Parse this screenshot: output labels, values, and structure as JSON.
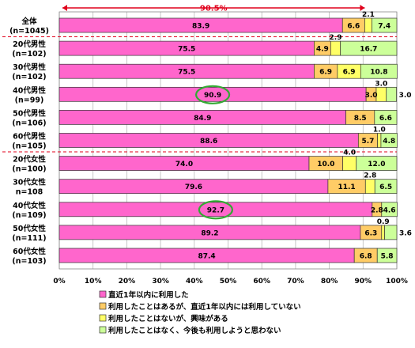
{
  "chart_data": {
    "type": "bar",
    "orientation": "horizontal",
    "stacked": true,
    "percent_axis": true,
    "categories": [
      {
        "label": "全体",
        "n": "(n=1045)"
      },
      {
        "label": "20代男性",
        "n": "(n=102)"
      },
      {
        "label": "30代男性",
        "n": "(n=102)"
      },
      {
        "label": "40代男性",
        "n": "(n=99)"
      },
      {
        "label": "50代男性",
        "n": "(n=106)"
      },
      {
        "label": "60代男性",
        "n": "(n=105)"
      },
      {
        "label": "20代女性",
        "n": "(n=100)"
      },
      {
        "label": "30代女性",
        "n": "n=108"
      },
      {
        "label": "40代女性",
        "n": "(n=109)"
      },
      {
        "label": "50代女性",
        "n": "(n=111)"
      },
      {
        "label": "60代女性",
        "n": "(n=103)"
      }
    ],
    "series": [
      {
        "name": "直近1年以内に利用した",
        "color": "#ff66cc",
        "values": [
          83.9,
          75.5,
          75.5,
          90.9,
          84.9,
          88.6,
          74.0,
          79.6,
          92.7,
          89.2,
          87.4
        ],
        "labels": [
          "83.9",
          "75.5",
          "75.5",
          "90.9",
          "84.9",
          "88.6",
          "74.0",
          "79.6",
          "92.7",
          "89.2",
          "87.4"
        ]
      },
      {
        "name": "利用したことはあるが、直近1年以内には利用していない",
        "color": "#ffcc66",
        "values": [
          6.6,
          4.9,
          6.9,
          3.0,
          8.5,
          5.7,
          10.0,
          11.1,
          2.8,
          6.3,
          6.8
        ],
        "labels": [
          "6.6",
          "4.9",
          "6.9",
          "3.0",
          "8.5",
          "5.7",
          "10.0",
          "11.1",
          "2.8",
          "6.3",
          "6.8"
        ]
      },
      {
        "name": "利用したことはないが、興味がある",
        "color": "#ffff66",
        "values": [
          2.1,
          2.9,
          6.9,
          3.0,
          0.0,
          1.0,
          4.0,
          2.8,
          0.0,
          0.9,
          0.0
        ],
        "labels": [
          "2.1",
          "2.9",
          "6.9",
          "3.0",
          "",
          "1.0",
          "4.0",
          "2.8",
          "",
          "0.9",
          ""
        ]
      },
      {
        "name": "利用したことはなく、今後も利用しようと思わない",
        "color": "#ccff99",
        "values": [
          7.4,
          16.7,
          10.8,
          3.0,
          6.6,
          4.8,
          12.0,
          6.5,
          4.6,
          3.6,
          5.8
        ],
        "labels": [
          "7.4",
          "16.7",
          "10.8",
          "3.0",
          "6.6",
          "4.8",
          "12.0",
          "6.5",
          "4.6",
          "3.6",
          "5.8"
        ]
      }
    ],
    "xlim": [
      0,
      100
    ],
    "x_ticks": [
      "0%",
      "10%",
      "20%",
      "30%",
      "40%",
      "50%",
      "60%",
      "70%",
      "80%",
      "90%",
      "100%"
    ],
    "annotation": {
      "text": "90.5%",
      "value": 90.5,
      "color": "#e0001b"
    },
    "highlighted": [
      "40代男性",
      "40代女性"
    ],
    "highlight_color": "#33aa33",
    "group_separators_after": [
      "全体",
      "60代男性"
    ],
    "legend_position": "bottom"
  }
}
